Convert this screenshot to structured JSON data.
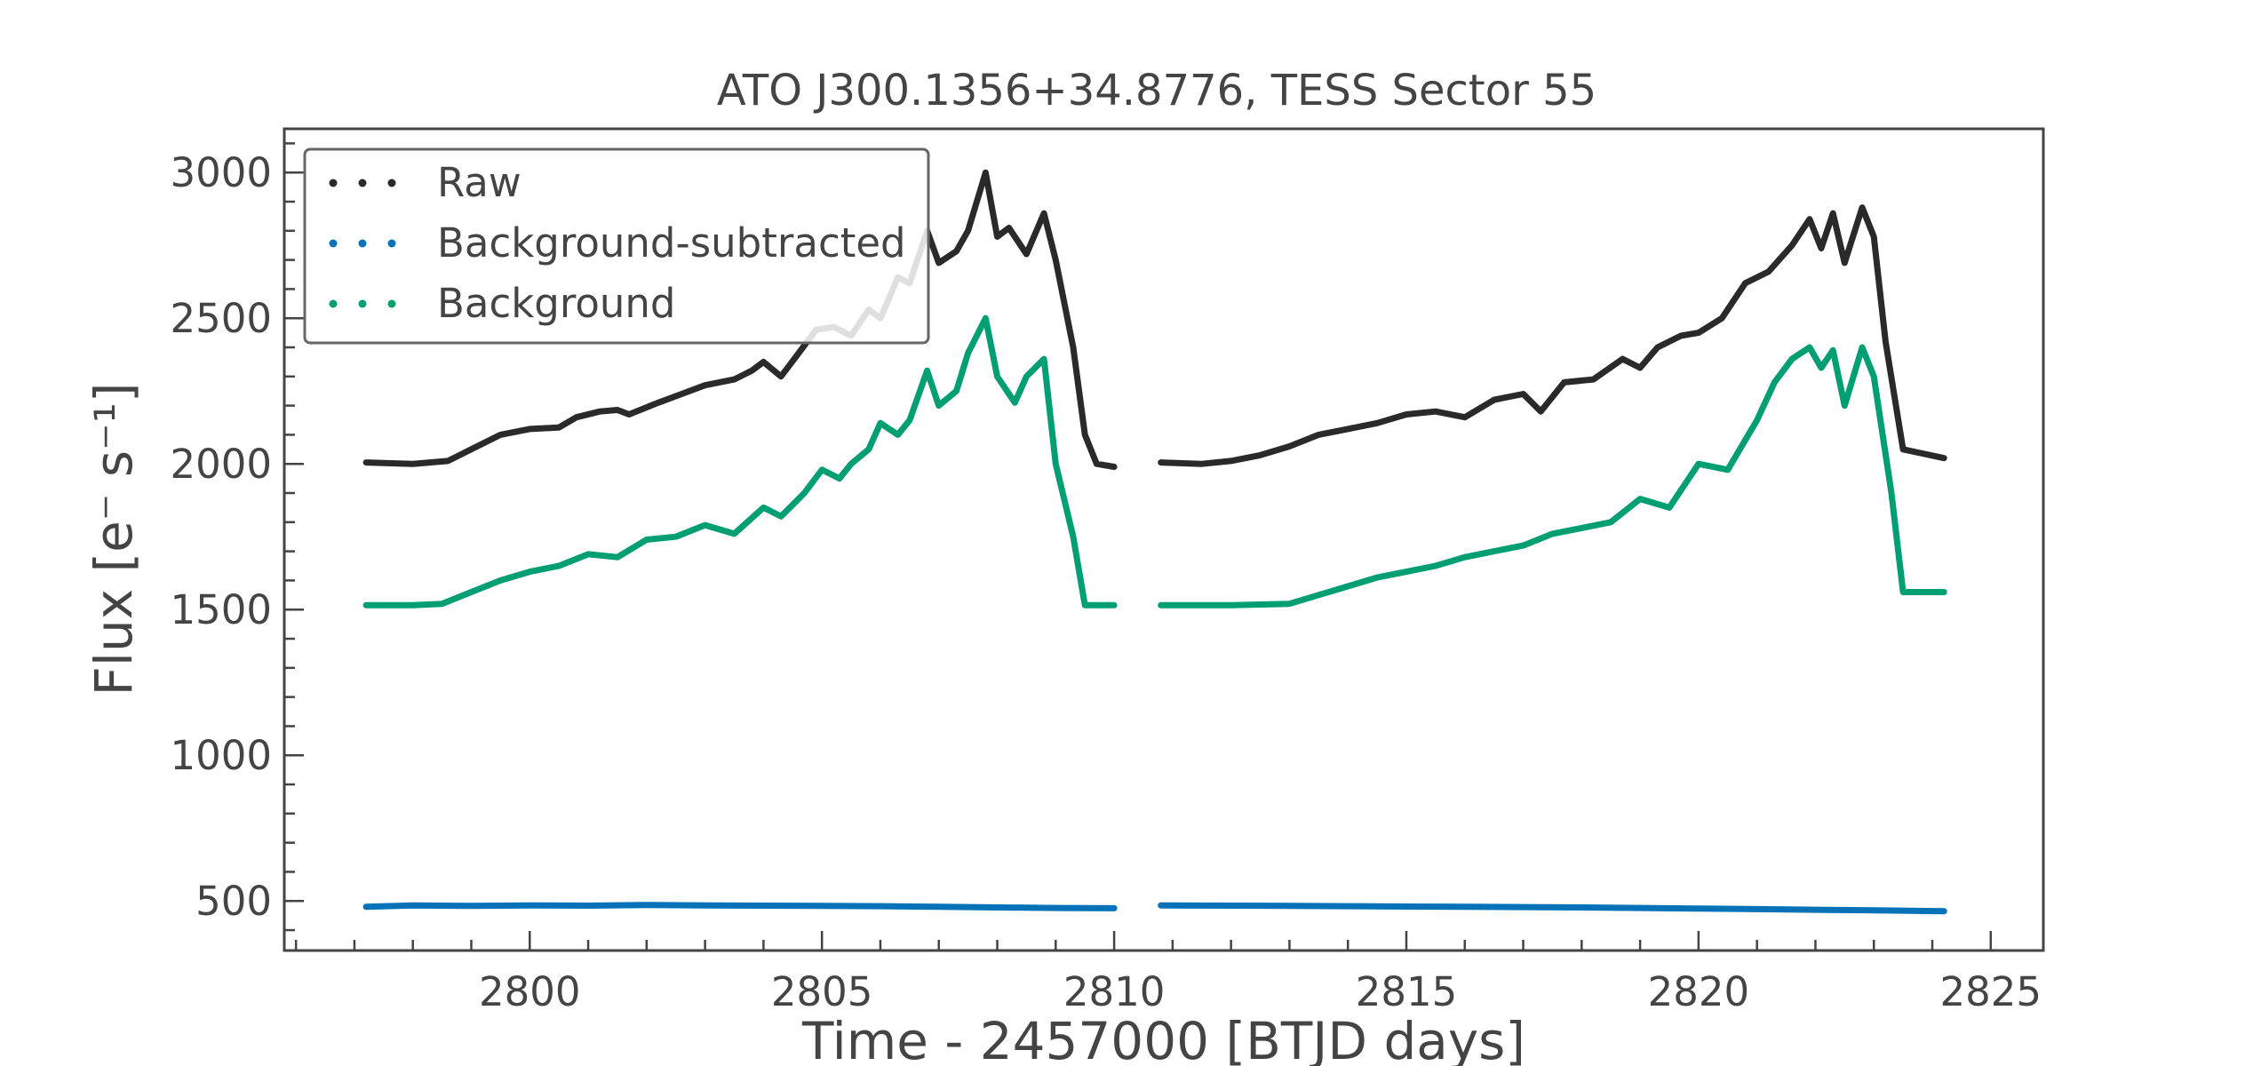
{
  "chart_data": {
    "type": "scatter",
    "title": "ATO J300.1356+34.8776, TESS Sector 55",
    "xlabel": "Time - 2457000 [BTJD days]",
    "ylabel": "Flux [e⁻ s⁻¹]",
    "xlim": [
      2795.8,
      2825.9
    ],
    "ylim": [
      330,
      3150
    ],
    "xticks": [
      2800,
      2805,
      2810,
      2815,
      2820,
      2825
    ],
    "yticks": [
      500,
      1000,
      1500,
      2000,
      2500,
      3000
    ],
    "grid": false,
    "legend_position": "upper left",
    "series": [
      {
        "name": "Raw",
        "color": "#2a2a2a",
        "x": [
          2797.2,
          2798.0,
          2798.6,
          2799.0,
          2799.5,
          2800.0,
          2800.5,
          2800.8,
          2801.2,
          2801.5,
          2801.7,
          2802.2,
          2802.6,
          2803.0,
          2803.5,
          2803.8,
          2804.0,
          2804.3,
          2804.6,
          2804.9,
          2805.2,
          2805.5,
          2805.8,
          2806.0,
          2806.3,
          2806.5,
          2806.8,
          2807.0,
          2807.3,
          2807.5,
          2807.8,
          2808.0,
          2808.2,
          2808.5,
          2808.8,
          2809.0,
          2809.3,
          2809.5,
          2809.7,
          2810.0
        ],
        "y": [
          2005,
          2000,
          2010,
          2050,
          2100,
          2120,
          2125,
          2160,
          2180,
          2185,
          2170,
          2210,
          2240,
          2270,
          2290,
          2320,
          2350,
          2300,
          2380,
          2460,
          2470,
          2440,
          2530,
          2500,
          2640,
          2620,
          2800,
          2690,
          2730,
          2800,
          3000,
          2780,
          2810,
          2720,
          2860,
          2700,
          2400,
          2100,
          2000,
          1990
        ]
      },
      {
        "name": "Raw",
        "color": "#2a2a2a",
        "x": [
          2810.8,
          2811.5,
          2812.0,
          2812.5,
          2813.0,
          2813.5,
          2814.0,
          2814.5,
          2815.0,
          2815.5,
          2816.0,
          2816.5,
          2817.0,
          2817.3,
          2817.7,
          2818.2,
          2818.7,
          2819.0,
          2819.3,
          2819.7,
          2820.0,
          2820.4,
          2820.8,
          2821.2,
          2821.6,
          2821.9,
          2822.1,
          2822.3,
          2822.5,
          2822.8,
          2823.0,
          2823.2,
          2823.5,
          2824.2
        ],
        "y": [
          2005,
          2000,
          2010,
          2030,
          2060,
          2100,
          2120,
          2140,
          2170,
          2180,
          2160,
          2220,
          2240,
          2180,
          2280,
          2290,
          2360,
          2330,
          2400,
          2440,
          2450,
          2500,
          2620,
          2660,
          2750,
          2840,
          2740,
          2860,
          2690,
          2880,
          2780,
          2420,
          2050,
          2020
        ]
      },
      {
        "name": "Background-subtracted",
        "color": "#0872b8",
        "x": [
          2797.2,
          2798.0,
          2799.0,
          2800.0,
          2801.0,
          2802.0,
          2803.0,
          2804.0,
          2805.0,
          2806.0,
          2807.0,
          2808.0,
          2809.0,
          2810.0
        ],
        "y": [
          480,
          485,
          483,
          485,
          484,
          486,
          485,
          484,
          483,
          482,
          480,
          478,
          476,
          475
        ]
      },
      {
        "name": "Background-subtracted",
        "color": "#0872b8",
        "x": [
          2810.8,
          2812.0,
          2813.0,
          2814.0,
          2815.0,
          2816.0,
          2817.0,
          2818.0,
          2819.0,
          2820.0,
          2821.0,
          2822.0,
          2823.0,
          2824.2
        ],
        "y": [
          485,
          484,
          483,
          482,
          481,
          480,
          479,
          478,
          476,
          474,
          472,
          470,
          468,
          465
        ]
      },
      {
        "name": "Background",
        "color": "#009e73",
        "x": [
          2797.2,
          2798.0,
          2798.5,
          2799.0,
          2799.5,
          2800.0,
          2800.5,
          2801.0,
          2801.5,
          2802.0,
          2802.5,
          2803.0,
          2803.5,
          2804.0,
          2804.3,
          2804.7,
          2805.0,
          2805.3,
          2805.5,
          2805.8,
          2806.0,
          2806.3,
          2806.5,
          2806.8,
          2807.0,
          2807.3,
          2807.5,
          2807.8,
          2808.0,
          2808.3,
          2808.5,
          2808.8,
          2809.0,
          2809.3,
          2809.5,
          2810.0
        ],
        "y": [
          1515,
          1515,
          1520,
          1560,
          1600,
          1630,
          1650,
          1690,
          1680,
          1740,
          1750,
          1790,
          1760,
          1850,
          1820,
          1900,
          1980,
          1950,
          2000,
          2050,
          2140,
          2100,
          2150,
          2320,
          2200,
          2250,
          2380,
          2500,
          2300,
          2210,
          2300,
          2360,
          2000,
          1750,
          1515,
          1515
        ]
      },
      {
        "name": "Background",
        "color": "#009e73",
        "x": [
          2810.8,
          2812.0,
          2813.0,
          2813.5,
          2814.0,
          2814.5,
          2815.0,
          2815.5,
          2816.0,
          2816.5,
          2817.0,
          2817.5,
          2818.0,
          2818.5,
          2819.0,
          2819.5,
          2820.0,
          2820.5,
          2821.0,
          2821.3,
          2821.6,
          2821.9,
          2822.1,
          2822.3,
          2822.5,
          2822.8,
          2823.0,
          2823.3,
          2823.5,
          2824.2
        ],
        "y": [
          1515,
          1515,
          1520,
          1550,
          1580,
          1610,
          1630,
          1650,
          1680,
          1700,
          1720,
          1760,
          1780,
          1800,
          1880,
          1850,
          2000,
          1980,
          2150,
          2280,
          2360,
          2400,
          2330,
          2390,
          2200,
          2400,
          2300,
          1900,
          1560,
          1560
        ]
      }
    ]
  }
}
